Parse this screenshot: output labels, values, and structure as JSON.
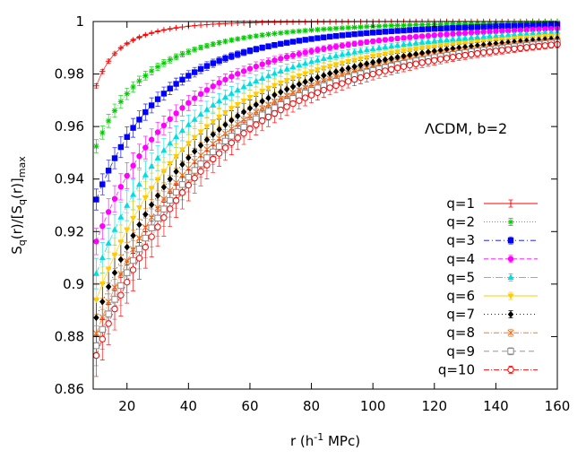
{
  "chart_data": {
    "type": "scatter",
    "title": "",
    "annotation": "ΛCDM, b=2",
    "xlabel": {
      "main": "r (h",
      "sup": "-1",
      "tail": " MPc)"
    },
    "ylabel": {
      "s": "S",
      "sub1": "q",
      "mid": "(r)/[S",
      "sub2": "q",
      "mid2": "(r)]",
      "sub3": "max"
    },
    "xlim": [
      9,
      160
    ],
    "ylim": [
      0.86,
      1.0
    ],
    "x_ticks": [
      20,
      40,
      60,
      80,
      100,
      120,
      140,
      160
    ],
    "y_ticks": [
      0.86,
      0.88,
      0.9,
      0.92,
      0.94,
      0.96,
      0.98,
      1.0
    ],
    "y_tick_labels": [
      "0.86",
      "0.88",
      "0.9",
      "0.92",
      "0.94",
      "0.96",
      "0.98",
      "1"
    ],
    "grid": false,
    "legend_position": "bottom-right",
    "x_range": {
      "start": 10,
      "end": 160,
      "step": 2
    },
    "series": [
      {
        "name": "q=1",
        "color": "#ff0000",
        "marker": "plus",
        "dash": "",
        "y_start": 0.9755,
        "scale": 4,
        "a": 0.35,
        "b": 0.65,
        "c": 0.05,
        "d": 25,
        "err": 0.0008
      },
      {
        "name": "q=2",
        "color": "#00cc00",
        "marker": "star",
        "dash": "1,2",
        "y_start": 0.9525,
        "scale": 12,
        "a": 0.6,
        "b": 0.4,
        "c": 0.08,
        "d": 30,
        "err": 0.0025
      },
      {
        "name": "q=3",
        "color": "#0000ff",
        "marker": "square",
        "dash": "6,3,1,3",
        "y_start": 0.9322,
        "scale": 17,
        "a": 0.7,
        "b": 0.3,
        "c": 0.1,
        "d": 35,
        "err": 0.004
      },
      {
        "name": "q=4",
        "color": "#ff00ff",
        "marker": "circle",
        "dash": "5,3",
        "y_start": 0.9162,
        "scale": 21,
        "a": 0.7,
        "b": 0.3,
        "c": 0.1,
        "d": 40,
        "err": 0.005
      },
      {
        "name": "q=5",
        "color": "#00dddd",
        "marker": "triangle",
        "dash": "8,2,1,2",
        "y_start": 0.904,
        "scale": 24,
        "a": 0.7,
        "b": 0.3,
        "c": 0.1,
        "d": 40,
        "err": 0.0058
      },
      {
        "name": "q=6",
        "color": "#ffcc00",
        "marker": "triangle-down",
        "dash": "",
        "y_start": 0.894,
        "scale": 26,
        "a": 0.7,
        "b": 0.3,
        "c": 0.1,
        "d": 45,
        "err": 0.0064
      },
      {
        "name": "q=7",
        "color": "#000000",
        "marker": "diamond",
        "dash": "1,3",
        "y_start": 0.8872,
        "scale": 28,
        "a": 0.7,
        "b": 0.3,
        "c": 0.1,
        "d": 45,
        "err": 0.0068
      },
      {
        "name": "q=8",
        "color": "#ff6600",
        "marker": "cross",
        "dash": "6,2,1,2",
        "y_start": 0.8812,
        "scale": 29,
        "a": 0.7,
        "b": 0.3,
        "c": 0.1,
        "d": 45,
        "err": 0.0072
      },
      {
        "name": "q=9",
        "color": "#888888",
        "marker": "square-open",
        "dash": "6,4",
        "y_start": 0.8765,
        "scale": 30,
        "a": 0.7,
        "b": 0.3,
        "c": 0.1,
        "d": 45,
        "err": 0.0076
      },
      {
        "name": "q=10",
        "color": "#ff0000",
        "marker": "circle-open",
        "dash": "6,2,1,2",
        "y_start": 0.8728,
        "scale": 31,
        "a": 0.7,
        "b": 0.3,
        "c": 0.1,
        "d": 45,
        "err": 0.008
      }
    ]
  }
}
